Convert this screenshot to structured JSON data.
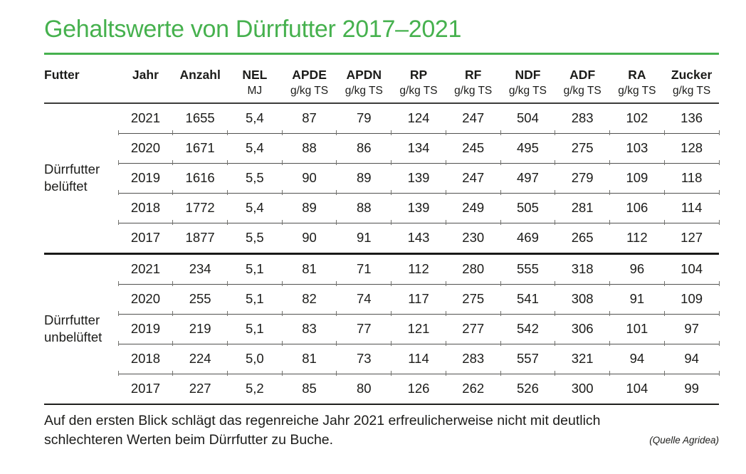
{
  "colors": {
    "accent_green": "#46b14e",
    "text": "#1c1c1a",
    "thin_rule": "#51514f",
    "thick_rule": "#1a1a18"
  },
  "chart_data": {
    "type": "table",
    "title": "Gehaltswerte von Dürrfutter 2017–2021",
    "columns": [
      {
        "label": "Futter",
        "unit": ""
      },
      {
        "label": "Jahr",
        "unit": ""
      },
      {
        "label": "Anzahl",
        "unit": ""
      },
      {
        "label": "NEL",
        "unit": "MJ"
      },
      {
        "label": "APDE",
        "unit": "g/kg TS"
      },
      {
        "label": "APDN",
        "unit": "g/kg TS"
      },
      {
        "label": "RP",
        "unit": "g/kg TS"
      },
      {
        "label": "RF",
        "unit": "g/kg TS"
      },
      {
        "label": "NDF",
        "unit": "g/kg TS"
      },
      {
        "label": "ADF",
        "unit": "g/kg TS"
      },
      {
        "label": "RA",
        "unit": "g/kg TS"
      },
      {
        "label": "Zucker",
        "unit": "g/kg TS"
      }
    ],
    "row_groups": [
      {
        "label": "Dürrfutter belüftet",
        "rows": [
          [
            "2021",
            "1655",
            "5,4",
            "87",
            "79",
            "124",
            "247",
            "504",
            "283",
            "102",
            "136"
          ],
          [
            "2020",
            "1671",
            "5,4",
            "88",
            "86",
            "134",
            "245",
            "495",
            "275",
            "103",
            "128"
          ],
          [
            "2019",
            "1616",
            "5,5",
            "90",
            "89",
            "139",
            "247",
            "497",
            "279",
            "109",
            "118"
          ],
          [
            "2018",
            "1772",
            "5,4",
            "89",
            "88",
            "139",
            "249",
            "505",
            "281",
            "106",
            "114"
          ],
          [
            "2017",
            "1877",
            "5,5",
            "90",
            "91",
            "143",
            "230",
            "469",
            "265",
            "112",
            "127"
          ]
        ]
      },
      {
        "label": "Dürrfutter unbelüftet",
        "rows": [
          [
            "2021",
            "234",
            "5,1",
            "81",
            "71",
            "112",
            "280",
            "555",
            "318",
            "96",
            "104"
          ],
          [
            "2020",
            "255",
            "5,1",
            "82",
            "74",
            "117",
            "275",
            "541",
            "308",
            "91",
            "109"
          ],
          [
            "2019",
            "219",
            "5,1",
            "83",
            "77",
            "121",
            "277",
            "542",
            "306",
            "101",
            "97"
          ],
          [
            "2018",
            "224",
            "5,0",
            "81",
            "73",
            "114",
            "283",
            "557",
            "321",
            "94",
            "94"
          ],
          [
            "2017",
            "227",
            "5,2",
            "85",
            "80",
            "126",
            "262",
            "526",
            "300",
            "104",
            "99"
          ]
        ]
      }
    ]
  },
  "footer": {
    "note_line1": "Auf den ersten Blick schlägt das regenreiche Jahr 2021 erfreulicherweise nicht mit deutlich",
    "note_line2": "schlechteren Werten beim Dürrfutter zu Buche.",
    "source": "(Quelle Agridea)"
  }
}
